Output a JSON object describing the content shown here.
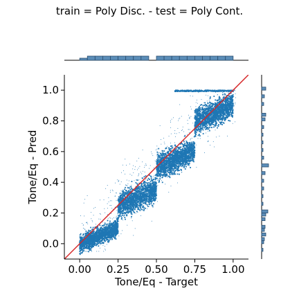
{
  "chart_data": {
    "type": "scatter",
    "title": "train = Poly Disc. - test = Poly Cont.",
    "xlabel": "Tone/Eq - Target",
    "ylabel": "Tone/Eq - Pred",
    "xlim": [
      -0.1,
      1.1
    ],
    "ylim": [
      -0.1,
      1.1
    ],
    "x_ticks": [
      {
        "value": 0.0,
        "label": "0.00"
      },
      {
        "value": 0.25,
        "label": "0.25"
      },
      {
        "value": 0.5,
        "label": "0.50"
      },
      {
        "value": 0.75,
        "label": "0.75"
      },
      {
        "value": 1.0,
        "label": "1.00"
      }
    ],
    "y_ticks": [
      {
        "value": 0.0,
        "label": "0.0"
      },
      {
        "value": 0.2,
        "label": "0.2"
      },
      {
        "value": 0.4,
        "label": "0.4"
      },
      {
        "value": 0.6,
        "label": "0.6"
      },
      {
        "value": 0.8,
        "label": "0.8"
      },
      {
        "value": 1.0,
        "label": "1.0"
      }
    ],
    "grid": false,
    "colors": {
      "points": "#1f77b4",
      "identity_line": "#d62728",
      "hist_fill": "#5b8db8",
      "hist_edge": "#2a4d6e"
    },
    "identity_line": {
      "x": [
        -0.1,
        1.1
      ],
      "y": [
        -0.1,
        1.1
      ]
    },
    "clusters": [
      {
        "x_range": [
          0.0,
          0.25
        ],
        "y_center": 0.05,
        "y_spread": 0.06
      },
      {
        "x_range": [
          0.25,
          0.5
        ],
        "y_center": 0.3,
        "y_spread": 0.09
      },
      {
        "x_range": [
          0.5,
          0.75
        ],
        "y_center": 0.55,
        "y_spread": 0.09
      },
      {
        "x_range": [
          0.75,
          1.0
        ],
        "y_center": 0.85,
        "y_spread": 0.09
      }
    ],
    "marginal_x": {
      "bins": [
        0.0,
        0.05,
        0.1,
        0.15,
        0.2,
        0.25,
        0.3,
        0.35,
        0.4,
        0.45,
        0.5,
        0.55,
        0.6,
        0.65,
        0.7,
        0.75,
        0.8,
        0.85,
        0.9,
        0.95
      ],
      "counts": [
        0.5,
        1,
        1,
        1,
        1,
        1,
        1,
        1,
        1,
        0,
        1,
        1,
        1,
        1,
        1,
        1,
        1,
        1,
        1,
        1
      ]
    },
    "marginal_y": {
      "bins": [
        -0.05,
        0.0,
        0.02,
        0.05,
        0.08,
        0.1,
        0.15,
        0.18,
        0.2,
        0.25,
        0.3,
        0.35,
        0.4,
        0.45,
        0.5,
        0.55,
        0.6,
        0.65,
        0.7,
        0.75,
        0.8,
        0.83,
        0.9,
        0.95,
        1.0
      ],
      "counts": [
        0.2,
        0.3,
        0.4,
        0.6,
        0.4,
        0.5,
        0.5,
        0.6,
        0.9,
        0.2,
        0.2,
        0.3,
        0.3,
        0.5,
        1.0,
        0.3,
        0.2,
        0.2,
        0.2,
        0.3,
        0.5,
        0.6,
        0.3,
        0.4,
        0.6
      ]
    }
  }
}
